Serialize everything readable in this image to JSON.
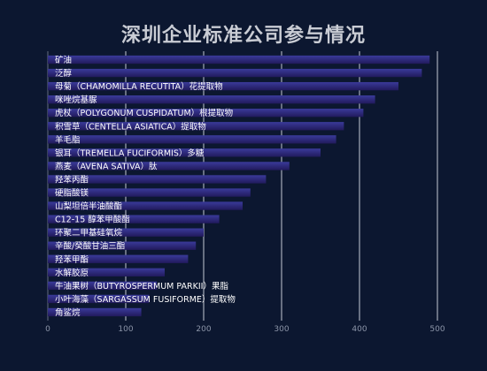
{
  "colors": {
    "background": "#0c1730",
    "bar_top": "#3a3a9a",
    "bar_bottom": "#211a5c",
    "grid": "#d8dce6",
    "title": "#c9ccd4"
  },
  "chart_data": {
    "type": "bar",
    "orientation": "horizontal",
    "title": "深圳企业标准公司参与情况",
    "xlabel": "",
    "ylabel": "",
    "xlim": [
      0,
      500
    ],
    "xticks": [
      0,
      100,
      200,
      300,
      400,
      500
    ],
    "grid": true,
    "legend": "none",
    "categories": [
      "矿油",
      "泛醇",
      "母菊（CHAMOMILLA RECUTITA）花提取物",
      "咪唑烷基脲",
      "虎杖（POLYGONUM CUSPIDATUM）根提取物",
      "积雪草（CENTELLA ASIATICA）提取物",
      "羊毛脂",
      "银耳（TREMELLA FUCIFORMIS）多糖",
      "燕麦（AVENA SATIVA）肽",
      "羟苯丙酯",
      "硬脂酸镁",
      "山梨坦倍半油酸酯",
      "C12-15 醇苯甲酸酯",
      "环聚二甲基硅氧烷",
      "辛酸/癸酸甘油三酯",
      "羟苯甲酯",
      "水解胶原",
      "牛油果树（BUTYROSPERMUM PARKII）果脂",
      "小叶海藻（SARGASSUM FUSIFORME）提取物",
      "角鲨烷"
    ],
    "values": [
      490,
      480,
      450,
      420,
      405,
      380,
      370,
      350,
      310,
      280,
      260,
      250,
      220,
      200,
      190,
      180,
      150,
      140,
      130,
      120
    ]
  }
}
